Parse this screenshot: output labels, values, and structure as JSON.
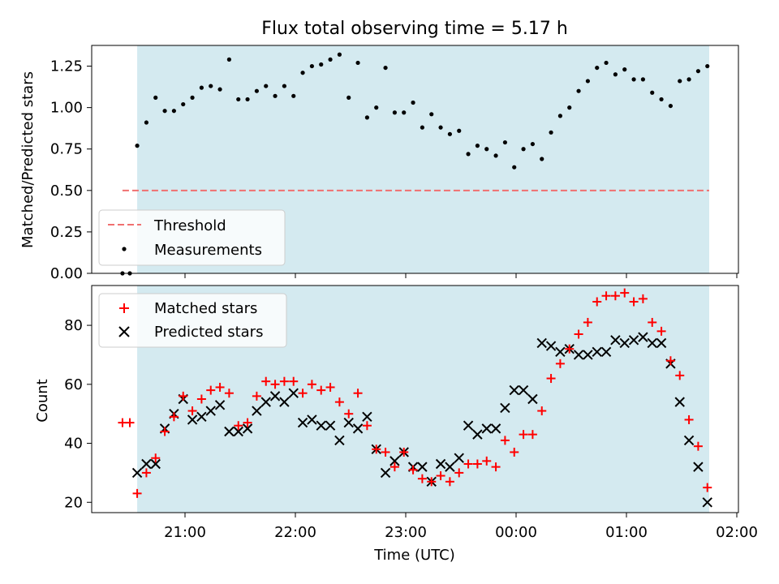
{
  "chart_data": [
    {
      "type": "scatter",
      "title": "Flux total observing time = 5.17 h",
      "xlabel": "",
      "ylabel": "Matched/Predicted stars",
      "xticks": [],
      "ylim": [
        0,
        1.375
      ],
      "yticks": [
        "0.00",
        "0.25",
        "0.50",
        "0.75",
        "1.00",
        "1.25"
      ],
      "shaded_region": {
        "start": "20:34",
        "end": "01:45",
        "color": "#d4eaf0"
      },
      "threshold": {
        "name": "Threshold",
        "value": 0.5,
        "start": "20:26",
        "end": "01:45",
        "color": "#f07070",
        "style": "dashed"
      },
      "legend": {
        "placement": "lower-left",
        "entries": [
          "Threshold",
          "Measurements"
        ]
      },
      "series": [
        {
          "name": "Measurements",
          "color": "#000000",
          "marker": "dot",
          "x": [
            "20:26",
            "20:30",
            "20:34",
            "20:39",
            "20:44",
            "20:49",
            "20:54",
            "20:59",
            "21:04",
            "21:09",
            "21:14",
            "21:19",
            "21:24",
            "21:29",
            "21:34",
            "21:39",
            "21:44",
            "21:49",
            "21:54",
            "21:59",
            "22:04",
            "22:09",
            "22:14",
            "22:19",
            "22:24",
            "22:29",
            "22:34",
            "22:39",
            "22:44",
            "22:49",
            "22:54",
            "22:59",
            "23:04",
            "23:09",
            "23:14",
            "23:19",
            "23:24",
            "23:29",
            "23:34",
            "23:39",
            "23:44",
            "23:49",
            "23:54",
            "23:59",
            "00:04",
            "00:09",
            "00:14",
            "00:19",
            "00:24",
            "00:29",
            "00:34",
            "00:39",
            "00:44",
            "00:49",
            "00:54",
            "00:59",
            "01:04",
            "01:09",
            "01:14",
            "01:19",
            "01:24",
            "01:29",
            "01:34",
            "01:39",
            "01:44"
          ],
          "y": [
            0.0,
            0.0,
            0.77,
            0.91,
            1.06,
            0.98,
            0.98,
            1.02,
            1.06,
            1.12,
            1.13,
            1.11,
            1.29,
            1.05,
            1.05,
            1.1,
            1.13,
            1.07,
            1.13,
            1.07,
            1.21,
            1.25,
            1.26,
            1.29,
            1.32,
            1.06,
            1.27,
            0.94,
            1.0,
            1.24,
            0.97,
            0.97,
            1.03,
            0.88,
            0.96,
            0.88,
            0.84,
            0.86,
            0.72,
            0.77,
            0.75,
            0.71,
            0.79,
            0.64,
            0.75,
            0.78,
            0.69,
            0.85,
            0.95,
            1.0,
            1.1,
            1.16,
            1.24,
            1.27,
            1.2,
            1.23,
            1.17,
            1.17,
            1.09,
            1.05,
            1.01,
            1.16,
            1.17,
            1.22,
            1.25
          ]
        }
      ]
    },
    {
      "type": "scatter",
      "title": "",
      "xlabel": "Time (UTC)",
      "ylabel": "Count",
      "xticks": [
        "21:00",
        "22:00",
        "23:00",
        "00:00",
        "01:00",
        "02:00"
      ],
      "ylim": [
        16.5,
        93.5
      ],
      "yticks": [
        "20",
        "40",
        "60",
        "80"
      ],
      "shaded_region": {
        "start": "20:34",
        "end": "01:45",
        "color": "#d4eaf0"
      },
      "legend": {
        "placement": "upper-left",
        "entries": [
          "Matched stars",
          "Predicted stars"
        ]
      },
      "series": [
        {
          "name": "Matched stars",
          "color": "#ff0000",
          "marker": "plus",
          "x": [
            "20:26",
            "20:30",
            "20:34",
            "20:39",
            "20:44",
            "20:49",
            "20:54",
            "20:59",
            "21:04",
            "21:09",
            "21:14",
            "21:19",
            "21:24",
            "21:29",
            "21:34",
            "21:39",
            "21:44",
            "21:49",
            "21:54",
            "21:59",
            "22:04",
            "22:09",
            "22:14",
            "22:19",
            "22:24",
            "22:29",
            "22:34",
            "22:39",
            "22:44",
            "22:49",
            "22:54",
            "22:59",
            "23:04",
            "23:09",
            "23:14",
            "23:19",
            "23:24",
            "23:29",
            "23:34",
            "23:39",
            "23:44",
            "23:49",
            "23:54",
            "23:59",
            "00:04",
            "00:09",
            "00:14",
            "00:19",
            "00:24",
            "00:29",
            "00:34",
            "00:39",
            "00:44",
            "00:49",
            "00:54",
            "00:59",
            "01:04",
            "01:09",
            "01:14",
            "01:19",
            "01:24",
            "01:29",
            "01:34",
            "01:39",
            "01:44"
          ],
          "y": [
            47,
            47,
            23,
            30,
            35,
            44,
            49,
            56,
            51,
            55,
            58,
            59,
            57,
            46,
            47,
            56,
            61,
            60,
            61,
            61,
            57,
            60,
            58,
            59,
            54,
            50,
            57,
            46,
            38,
            37,
            32,
            37,
            31,
            28,
            27,
            29,
            27,
            30,
            33,
            33,
            34,
            32,
            41,
            37,
            43,
            43,
            51,
            62,
            67,
            72,
            77,
            81,
            88,
            90,
            90,
            91,
            88,
            89,
            81,
            78,
            68,
            63,
            48,
            39,
            25
          ]
        },
        {
          "name": "Predicted stars",
          "color": "#000000",
          "marker": "x",
          "x": [
            "20:34",
            "20:39",
            "20:44",
            "20:49",
            "20:54",
            "20:59",
            "21:04",
            "21:09",
            "21:14",
            "21:19",
            "21:24",
            "21:29",
            "21:34",
            "21:39",
            "21:44",
            "21:49",
            "21:54",
            "21:59",
            "22:04",
            "22:09",
            "22:14",
            "22:19",
            "22:24",
            "22:29",
            "22:34",
            "22:39",
            "22:44",
            "22:49",
            "22:54",
            "22:59",
            "23:04",
            "23:09",
            "23:14",
            "23:19",
            "23:24",
            "23:29",
            "23:34",
            "23:39",
            "23:44",
            "23:49",
            "23:54",
            "23:59",
            "00:04",
            "00:09",
            "00:14",
            "00:19",
            "00:24",
            "00:29",
            "00:34",
            "00:39",
            "00:44",
            "00:49",
            "00:54",
            "00:59",
            "01:04",
            "01:09",
            "01:14",
            "01:19",
            "01:24",
            "01:29",
            "01:34",
            "01:39",
            "01:44"
          ],
          "y": [
            30,
            33,
            33,
            45,
            50,
            55,
            48,
            49,
            51,
            53,
            44,
            44,
            45,
            51,
            54,
            56,
            54,
            57,
            47,
            48,
            46,
            46,
            41,
            47,
            45,
            49,
            38,
            30,
            34,
            37,
            32,
            32,
            27,
            33,
            32,
            35,
            46,
            43,
            45,
            45,
            52,
            58,
            58,
            55,
            74,
            73,
            71,
            72,
            70,
            70,
            71,
            71,
            75,
            74,
            75,
            76,
            74,
            74,
            67,
            54,
            41,
            32,
            20
          ]
        }
      ]
    }
  ]
}
